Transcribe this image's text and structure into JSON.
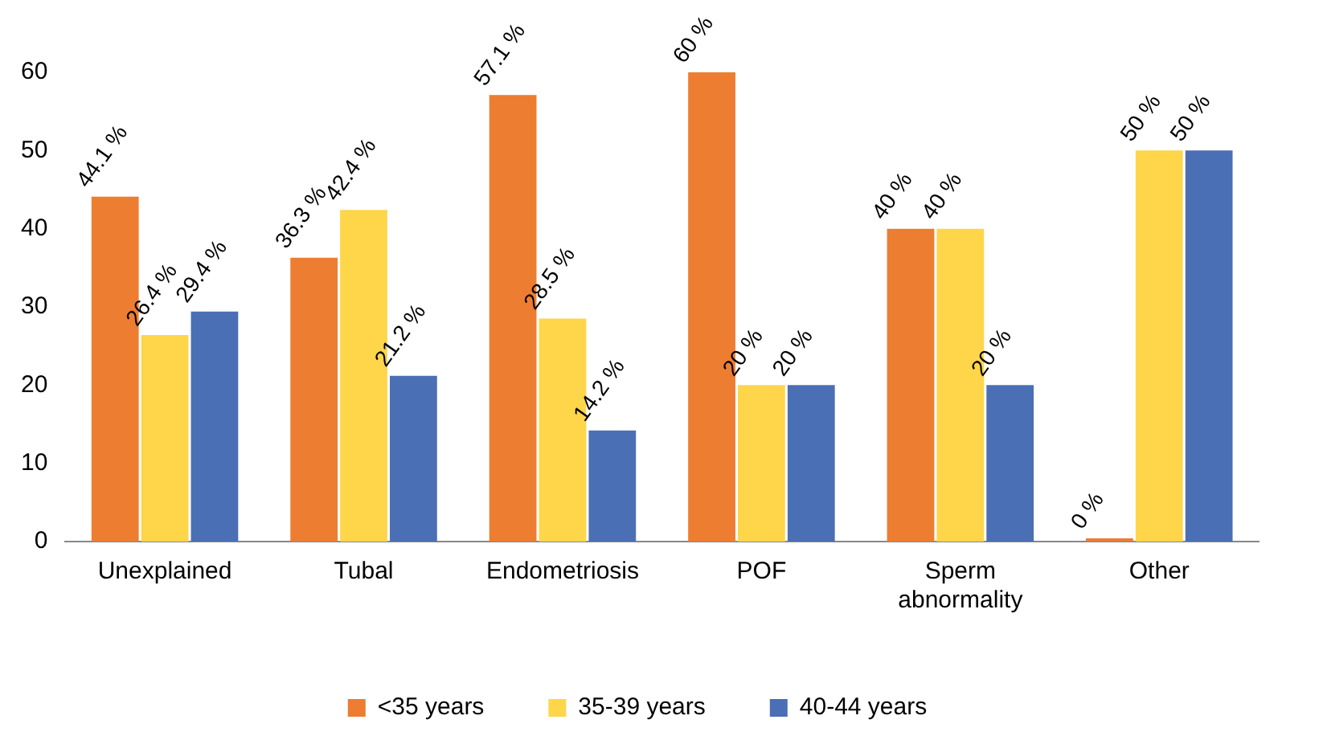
{
  "chart_data": {
    "type": "bar",
    "categories": [
      "Unexplained",
      "Tubal",
      "Endometriosis",
      "POF",
      "Sperm abnormality",
      "Other"
    ],
    "series": [
      {
        "name": "<35 years",
        "color": "#ed7d31",
        "values": [
          44.1,
          36.3,
          57.1,
          60,
          40,
          0
        ],
        "value_labels": [
          "44.1 %",
          "36.3 %",
          "57.1 %",
          "60 %",
          "40 %",
          "0 %"
        ]
      },
      {
        "name": "35-39 years",
        "color": "#ffd54a",
        "values": [
          26.4,
          42.4,
          28.5,
          20,
          40,
          50
        ],
        "value_labels": [
          "26.4 %",
          "42.4 %",
          "28.5 %",
          "20 %",
          "40 %",
          "50 %"
        ]
      },
      {
        "name": "40-44 years",
        "color": "#4a6fb5",
        "values": [
          29.4,
          21.2,
          14.2,
          20,
          20,
          50
        ],
        "value_labels": [
          "29.4 %",
          "21.2 %",
          "14.2 %",
          "20 %",
          "20 %",
          "50 %"
        ]
      }
    ],
    "ylim": [
      0,
      60
    ],
    "yticks": [
      0,
      10,
      20,
      30,
      40,
      50,
      60
    ],
    "grid": false,
    "legend": "bottom"
  }
}
